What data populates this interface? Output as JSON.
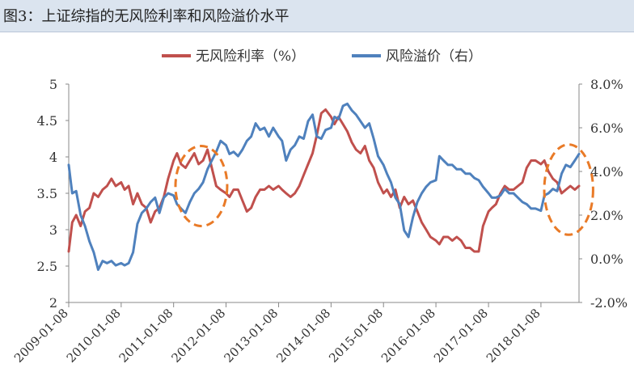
{
  "chart_data": {
    "type": "line",
    "title": "图3：上证综指的无风险利率和风险溢价水平",
    "legend_position": "top-center",
    "left_axis": {
      "min": 2,
      "max": 5,
      "ticks": [
        "2",
        "2.5",
        "3",
        "3.5",
        "4",
        "4.5",
        "5"
      ]
    },
    "right_axis": {
      "min": -2,
      "max": 8,
      "ticks": [
        "-2.0%",
        "0.0%",
        "2.0%",
        "4.0%",
        "6.0%",
        "8.0%"
      ]
    },
    "x_ticks": [
      "2009-01-08",
      "2010-01-08",
      "2011-01-08",
      "2012-01-08",
      "2013-01-08",
      "2014-01-08",
      "2015-01-08",
      "2016-01-08",
      "2017-01-08",
      "2018-01-08"
    ],
    "x_range": [
      "2009-01-08",
      "2018-09-30"
    ],
    "series": [
      {
        "name": "无风险利率（%）",
        "axis": "left",
        "color": "#c0504d",
        "points": [
          [
            "2009-01-08",
            2.7
          ],
          [
            "2009-02-01",
            3.1
          ],
          [
            "2009-03-01",
            3.2
          ],
          [
            "2009-04-01",
            3.05
          ],
          [
            "2009-05-01",
            3.25
          ],
          [
            "2009-06-01",
            3.3
          ],
          [
            "2009-07-01",
            3.5
          ],
          [
            "2009-08-01",
            3.45
          ],
          [
            "2009-09-01",
            3.55
          ],
          [
            "2009-10-01",
            3.6
          ],
          [
            "2009-11-01",
            3.7
          ],
          [
            "2009-12-01",
            3.6
          ],
          [
            "2010-01-08",
            3.65
          ],
          [
            "2010-02-01",
            3.55
          ],
          [
            "2010-03-01",
            3.6
          ],
          [
            "2010-04-01",
            3.35
          ],
          [
            "2010-05-01",
            3.5
          ],
          [
            "2010-06-01",
            3.35
          ],
          [
            "2010-07-01",
            3.3
          ],
          [
            "2010-08-01",
            3.1
          ],
          [
            "2010-09-01",
            3.25
          ],
          [
            "2010-10-01",
            3.3
          ],
          [
            "2010-11-01",
            3.45
          ],
          [
            "2010-12-01",
            3.7
          ],
          [
            "2011-01-08",
            3.95
          ],
          [
            "2011-02-01",
            4.05
          ],
          [
            "2011-03-01",
            3.9
          ],
          [
            "2011-04-01",
            3.85
          ],
          [
            "2011-05-01",
            3.95
          ],
          [
            "2011-06-01",
            4.05
          ],
          [
            "2011-07-01",
            3.9
          ],
          [
            "2011-08-01",
            3.95
          ],
          [
            "2011-09-01",
            4.1
          ],
          [
            "2011-10-01",
            3.85
          ],
          [
            "2011-11-01",
            3.6
          ],
          [
            "2011-12-01",
            3.55
          ],
          [
            "2012-01-08",
            3.5
          ],
          [
            "2012-02-01",
            3.45
          ],
          [
            "2012-03-01",
            3.55
          ],
          [
            "2012-04-01",
            3.55
          ],
          [
            "2012-05-01",
            3.4
          ],
          [
            "2012-06-01",
            3.25
          ],
          [
            "2012-07-01",
            3.3
          ],
          [
            "2012-08-01",
            3.45
          ],
          [
            "2012-09-01",
            3.55
          ],
          [
            "2012-10-01",
            3.55
          ],
          [
            "2012-11-01",
            3.6
          ],
          [
            "2012-12-01",
            3.55
          ],
          [
            "2013-01-08",
            3.6
          ],
          [
            "2013-02-01",
            3.55
          ],
          [
            "2013-03-01",
            3.5
          ],
          [
            "2013-04-01",
            3.45
          ],
          [
            "2013-05-01",
            3.5
          ],
          [
            "2013-06-01",
            3.6
          ],
          [
            "2013-07-01",
            3.75
          ],
          [
            "2013-08-01",
            3.9
          ],
          [
            "2013-09-01",
            4.05
          ],
          [
            "2013-10-01",
            4.3
          ],
          [
            "2013-11-01",
            4.6
          ],
          [
            "2013-12-01",
            4.65
          ],
          [
            "2014-01-08",
            4.55
          ],
          [
            "2014-02-01",
            4.45
          ],
          [
            "2014-03-01",
            4.55
          ],
          [
            "2014-04-01",
            4.45
          ],
          [
            "2014-05-01",
            4.35
          ],
          [
            "2014-06-01",
            4.2
          ],
          [
            "2014-07-01",
            4.1
          ],
          [
            "2014-08-01",
            4.05
          ],
          [
            "2014-09-01",
            4.15
          ],
          [
            "2014-10-01",
            3.95
          ],
          [
            "2014-11-01",
            3.85
          ],
          [
            "2014-12-01",
            3.65
          ],
          [
            "2015-01-08",
            3.5
          ],
          [
            "2015-02-01",
            3.55
          ],
          [
            "2015-03-01",
            3.45
          ],
          [
            "2015-04-01",
            3.55
          ],
          [
            "2015-05-01",
            3.3
          ],
          [
            "2015-06-01",
            3.45
          ],
          [
            "2015-07-01",
            3.35
          ],
          [
            "2015-08-01",
            3.4
          ],
          [
            "2015-09-01",
            3.25
          ],
          [
            "2015-10-01",
            3.1
          ],
          [
            "2015-11-01",
            3.0
          ],
          [
            "2015-12-01",
            2.9
          ],
          [
            "2016-01-08",
            2.85
          ],
          [
            "2016-02-01",
            2.8
          ],
          [
            "2016-03-01",
            2.9
          ],
          [
            "2016-04-01",
            2.9
          ],
          [
            "2016-05-01",
            2.85
          ],
          [
            "2016-06-01",
            2.9
          ],
          [
            "2016-07-01",
            2.85
          ],
          [
            "2016-08-01",
            2.75
          ],
          [
            "2016-09-01",
            2.75
          ],
          [
            "2016-10-01",
            2.7
          ],
          [
            "2016-11-01",
            2.7
          ],
          [
            "2016-12-01",
            3.05
          ],
          [
            "2017-01-08",
            3.25
          ],
          [
            "2017-02-01",
            3.3
          ],
          [
            "2017-03-01",
            3.35
          ],
          [
            "2017-04-01",
            3.5
          ],
          [
            "2017-05-01",
            3.6
          ],
          [
            "2017-06-01",
            3.55
          ],
          [
            "2017-07-01",
            3.55
          ],
          [
            "2017-08-01",
            3.6
          ],
          [
            "2017-09-01",
            3.65
          ],
          [
            "2017-10-01",
            3.85
          ],
          [
            "2017-11-01",
            3.95
          ],
          [
            "2017-12-01",
            3.95
          ],
          [
            "2018-01-08",
            3.9
          ],
          [
            "2018-02-01",
            3.95
          ],
          [
            "2018-03-01",
            3.8
          ],
          [
            "2018-04-01",
            3.7
          ],
          [
            "2018-05-01",
            3.65
          ],
          [
            "2018-06-01",
            3.5
          ],
          [
            "2018-07-01",
            3.55
          ],
          [
            "2018-08-01",
            3.6
          ],
          [
            "2018-09-01",
            3.55
          ],
          [
            "2018-09-30",
            3.6
          ]
        ]
      },
      {
        "name": "风险溢价（右）",
        "axis": "right",
        "color": "#4f81bd",
        "points": [
          [
            "2009-01-08",
            4.3
          ],
          [
            "2009-02-01",
            3.0
          ],
          [
            "2009-03-01",
            3.1
          ],
          [
            "2009-04-01",
            2.0
          ],
          [
            "2009-05-01",
            1.5
          ],
          [
            "2009-06-01",
            0.8
          ],
          [
            "2009-07-01",
            0.3
          ],
          [
            "2009-08-01",
            -0.5
          ],
          [
            "2009-09-01",
            -0.1
          ],
          [
            "2009-10-01",
            -0.2
          ],
          [
            "2009-11-01",
            -0.1
          ],
          [
            "2009-12-01",
            -0.3
          ],
          [
            "2010-01-08",
            -0.2
          ],
          [
            "2010-02-01",
            -0.3
          ],
          [
            "2010-03-01",
            -0.2
          ],
          [
            "2010-04-01",
            0.3
          ],
          [
            "2010-05-01",
            1.6
          ],
          [
            "2010-06-01",
            2.1
          ],
          [
            "2010-07-01",
            2.3
          ],
          [
            "2010-08-01",
            2.6
          ],
          [
            "2010-09-01",
            2.8
          ],
          [
            "2010-10-01",
            2.1
          ],
          [
            "2010-11-01",
            2.8
          ],
          [
            "2010-12-01",
            3.0
          ],
          [
            "2011-01-08",
            2.9
          ],
          [
            "2011-02-01",
            2.5
          ],
          [
            "2011-03-01",
            2.3
          ],
          [
            "2011-04-01",
            2.1
          ],
          [
            "2011-05-01",
            2.6
          ],
          [
            "2011-06-01",
            3.0
          ],
          [
            "2011-07-01",
            3.2
          ],
          [
            "2011-08-01",
            3.5
          ],
          [
            "2011-09-01",
            4.1
          ],
          [
            "2011-10-01",
            4.5
          ],
          [
            "2011-11-01",
            4.9
          ],
          [
            "2011-12-01",
            5.4
          ],
          [
            "2012-01-08",
            5.2
          ],
          [
            "2012-02-01",
            4.8
          ],
          [
            "2012-03-01",
            4.9
          ],
          [
            "2012-04-01",
            4.7
          ],
          [
            "2012-05-01",
            5.0
          ],
          [
            "2012-06-01",
            5.4
          ],
          [
            "2012-07-01",
            5.6
          ],
          [
            "2012-08-01",
            6.2
          ],
          [
            "2012-09-01",
            5.9
          ],
          [
            "2012-10-01",
            6.0
          ],
          [
            "2012-11-01",
            5.6
          ],
          [
            "2012-12-01",
            6.0
          ],
          [
            "2013-01-08",
            5.6
          ],
          [
            "2013-02-01",
            5.4
          ],
          [
            "2013-03-01",
            4.5
          ],
          [
            "2013-04-01",
            5.0
          ],
          [
            "2013-05-01",
            5.2
          ],
          [
            "2013-06-01",
            5.6
          ],
          [
            "2013-07-01",
            5.5
          ],
          [
            "2013-08-01",
            6.3
          ],
          [
            "2013-09-01",
            6.6
          ],
          [
            "2013-10-01",
            5.6
          ],
          [
            "2013-11-01",
            5.5
          ],
          [
            "2013-12-01",
            5.9
          ],
          [
            "2014-01-08",
            6.0
          ],
          [
            "2014-02-01",
            6.5
          ],
          [
            "2014-03-01",
            6.4
          ],
          [
            "2014-04-01",
            7.0
          ],
          [
            "2014-05-01",
            7.1
          ],
          [
            "2014-06-01",
            6.8
          ],
          [
            "2014-07-01",
            6.6
          ],
          [
            "2014-08-01",
            6.3
          ],
          [
            "2014-09-01",
            6.0
          ],
          [
            "2014-10-01",
            6.2
          ],
          [
            "2014-11-01",
            5.5
          ],
          [
            "2014-12-01",
            4.7
          ],
          [
            "2015-01-08",
            4.3
          ],
          [
            "2015-02-01",
            3.9
          ],
          [
            "2015-03-01",
            3.5
          ],
          [
            "2015-04-01",
            2.8
          ],
          [
            "2015-05-01",
            2.5
          ],
          [
            "2015-06-01",
            1.3
          ],
          [
            "2015-07-01",
            1.0
          ],
          [
            "2015-08-01",
            1.9
          ],
          [
            "2015-09-01",
            2.6
          ],
          [
            "2015-10-01",
            3.0
          ],
          [
            "2015-11-01",
            3.3
          ],
          [
            "2015-12-01",
            3.5
          ],
          [
            "2016-01-08",
            3.6
          ],
          [
            "2016-02-01",
            4.7
          ],
          [
            "2016-03-01",
            4.5
          ],
          [
            "2016-04-01",
            4.3
          ],
          [
            "2016-05-01",
            4.3
          ],
          [
            "2016-06-01",
            4.1
          ],
          [
            "2016-07-01",
            4.1
          ],
          [
            "2016-08-01",
            3.9
          ],
          [
            "2016-09-01",
            3.9
          ],
          [
            "2016-10-01",
            3.7
          ],
          [
            "2016-11-01",
            3.6
          ],
          [
            "2016-12-01",
            3.3
          ],
          [
            "2017-01-08",
            3.0
          ],
          [
            "2017-02-01",
            2.8
          ],
          [
            "2017-03-01",
            2.8
          ],
          [
            "2017-04-01",
            2.9
          ],
          [
            "2017-05-01",
            3.2
          ],
          [
            "2017-06-01",
            3.0
          ],
          [
            "2017-07-01",
            3.0
          ],
          [
            "2017-08-01",
            2.8
          ],
          [
            "2017-09-01",
            2.6
          ],
          [
            "2017-10-01",
            2.5
          ],
          [
            "2017-11-01",
            2.3
          ],
          [
            "2017-12-01",
            2.3
          ],
          [
            "2018-01-08",
            2.2
          ],
          [
            "2018-02-01",
            2.9
          ],
          [
            "2018-03-01",
            3.0
          ],
          [
            "2018-04-01",
            3.2
          ],
          [
            "2018-05-01",
            3.1
          ],
          [
            "2018-06-01",
            3.9
          ],
          [
            "2018-07-01",
            4.3
          ],
          [
            "2018-08-01",
            4.2
          ],
          [
            "2018-09-01",
            4.5
          ],
          [
            "2018-09-30",
            4.8
          ]
        ]
      }
    ],
    "annotations": [
      {
        "type": "dashed-ellipse",
        "color": "#e97a27",
        "center_date": "2011-07-20",
        "center_left_value": 3.6,
        "rx_days": 180,
        "ry_value": 0.55
      },
      {
        "type": "dashed-ellipse",
        "color": "#e97a27",
        "center_date": "2018-07-20",
        "center_left_value": 3.55,
        "rx_days": 170,
        "ry_value": 0.62
      }
    ]
  }
}
